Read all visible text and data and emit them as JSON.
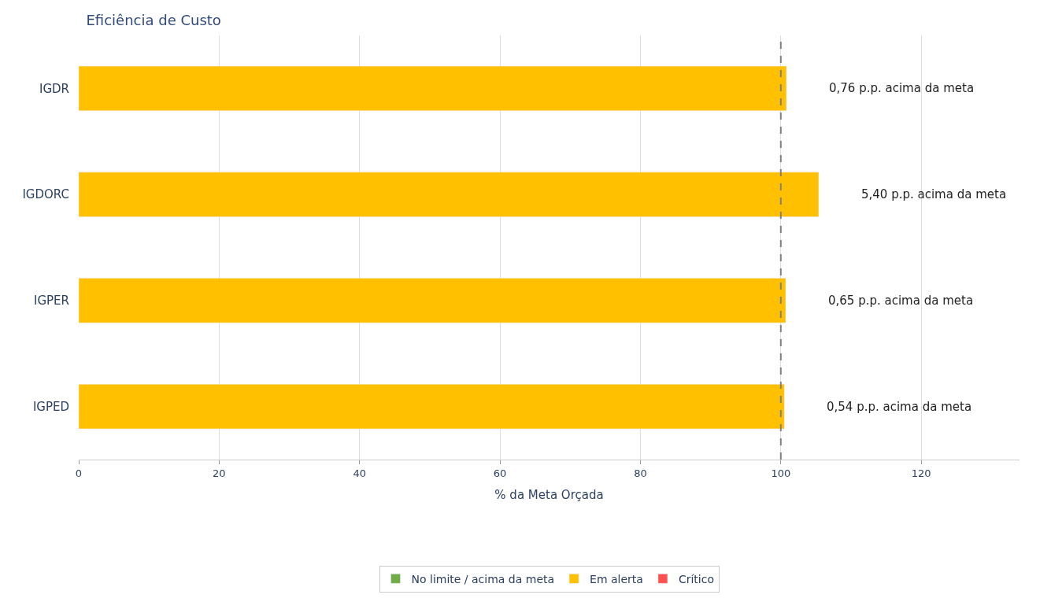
{
  "chart_data": {
    "type": "bar",
    "orientation": "horizontal",
    "title": "Eficiência de Custo",
    "xlabel": "% da Meta Orçada",
    "categories": [
      "IGDR",
      "IGDORC",
      "IGPER",
      "IGPED"
    ],
    "series": [
      {
        "name": "No limite / acima da meta",
        "color": "#70ad47",
        "values": [
          null,
          null,
          null,
          null
        ]
      },
      {
        "name": "Em alerta",
        "color": "#ffc000",
        "values": [
          100.8,
          105.4,
          100.7,
          100.5
        ]
      },
      {
        "name": "Crítico",
        "color": "#ff4f4f",
        "values": [
          null,
          null,
          null,
          null
        ]
      }
    ],
    "annotations": [
      "0,76 p.p. acima da meta",
      "5,40 p.p. acima da meta",
      "0,65 p.p. acima da meta",
      "0,54 p.p. acima da meta"
    ],
    "xlim": [
      0,
      134
    ],
    "xticks": [
      0,
      20,
      40,
      60,
      80,
      100,
      120
    ],
    "ref_lines": [
      {
        "axis": "x",
        "value": 100,
        "color": "#808080",
        "line_style": "dashed"
      }
    ],
    "grid": "x",
    "legend": "bottom"
  }
}
